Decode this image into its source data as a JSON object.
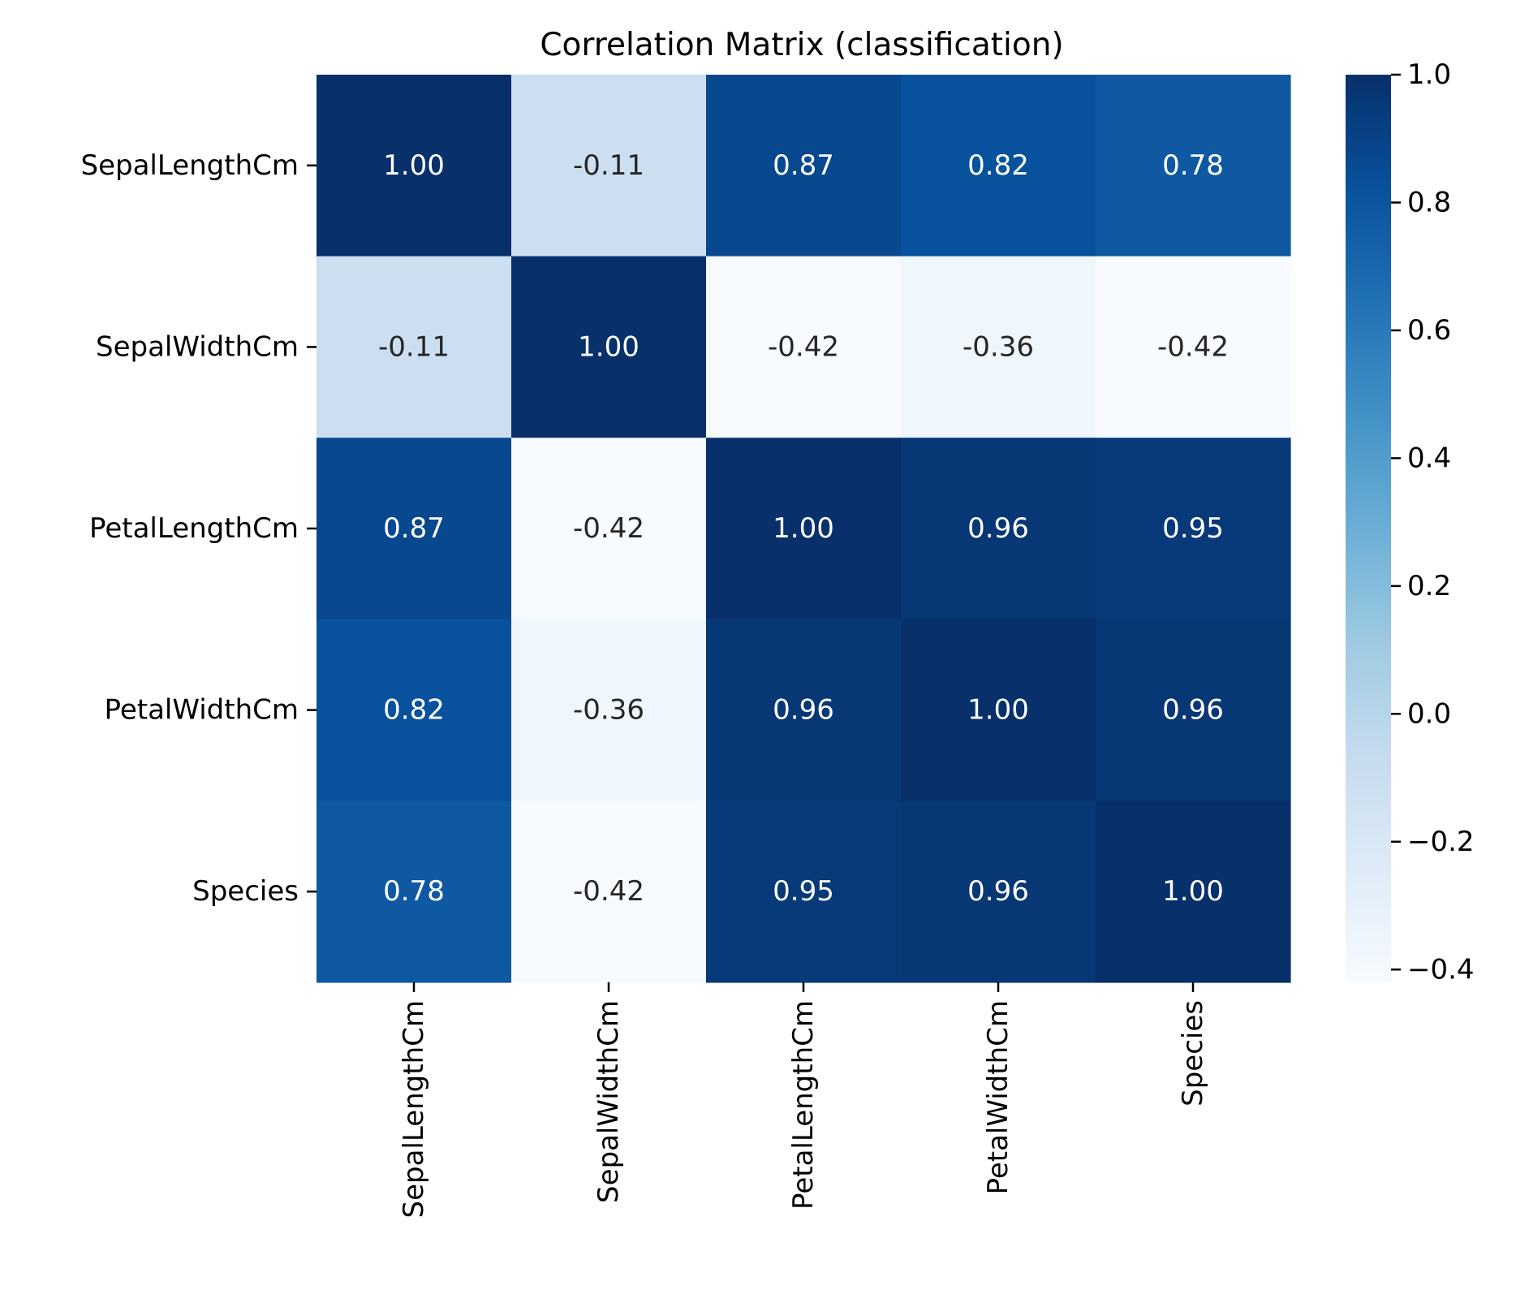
{
  "chart_data": {
    "type": "heatmap",
    "title": "Correlation Matrix (classification)",
    "xlabel": "",
    "ylabel": "",
    "row_labels": [
      "SepalLengthCm",
      "SepalWidthCm",
      "PetalLengthCm",
      "PetalWidthCm",
      "Species"
    ],
    "col_labels": [
      "SepalLengthCm",
      "SepalWidthCm",
      "PetalLengthCm",
      "PetalWidthCm",
      "Species"
    ],
    "values": [
      [
        1.0,
        -0.11,
        0.87,
        0.82,
        0.78
      ],
      [
        -0.11,
        1.0,
        -0.42,
        -0.36,
        -0.42
      ],
      [
        0.87,
        -0.42,
        1.0,
        0.96,
        0.95
      ],
      [
        0.82,
        -0.36,
        0.96,
        1.0,
        0.96
      ],
      [
        0.78,
        -0.42,
        0.95,
        0.96,
        1.0
      ]
    ],
    "value_labels": [
      [
        "1.00",
        "-0.11",
        "0.87",
        "0.82",
        "0.78"
      ],
      [
        "-0.11",
        "1.00",
        "-0.42",
        "-0.36",
        "-0.42"
      ],
      [
        "0.87",
        "-0.42",
        "1.00",
        "0.96",
        "0.95"
      ],
      [
        "0.82",
        "-0.36",
        "0.96",
        "1.00",
        "0.96"
      ],
      [
        "0.78",
        "-0.42",
        "0.95",
        "0.96",
        "1.00"
      ]
    ],
    "colormap": "Blues",
    "color_range": [
      -0.42,
      1.0
    ],
    "colorbar": {
      "ticks": [
        1.0,
        0.8,
        0.6,
        0.4,
        0.2,
        0.0,
        -0.2,
        -0.4
      ],
      "tick_labels": [
        "1.0",
        "0.8",
        "0.6",
        "0.4",
        "0.2",
        "0.0",
        "−0.2",
        "−0.4"
      ]
    },
    "annotation_colors": {
      "dark_cell_text": "#ffffff",
      "light_cell_text": "#262626"
    },
    "grid": false,
    "legend": "colorbar-right"
  }
}
